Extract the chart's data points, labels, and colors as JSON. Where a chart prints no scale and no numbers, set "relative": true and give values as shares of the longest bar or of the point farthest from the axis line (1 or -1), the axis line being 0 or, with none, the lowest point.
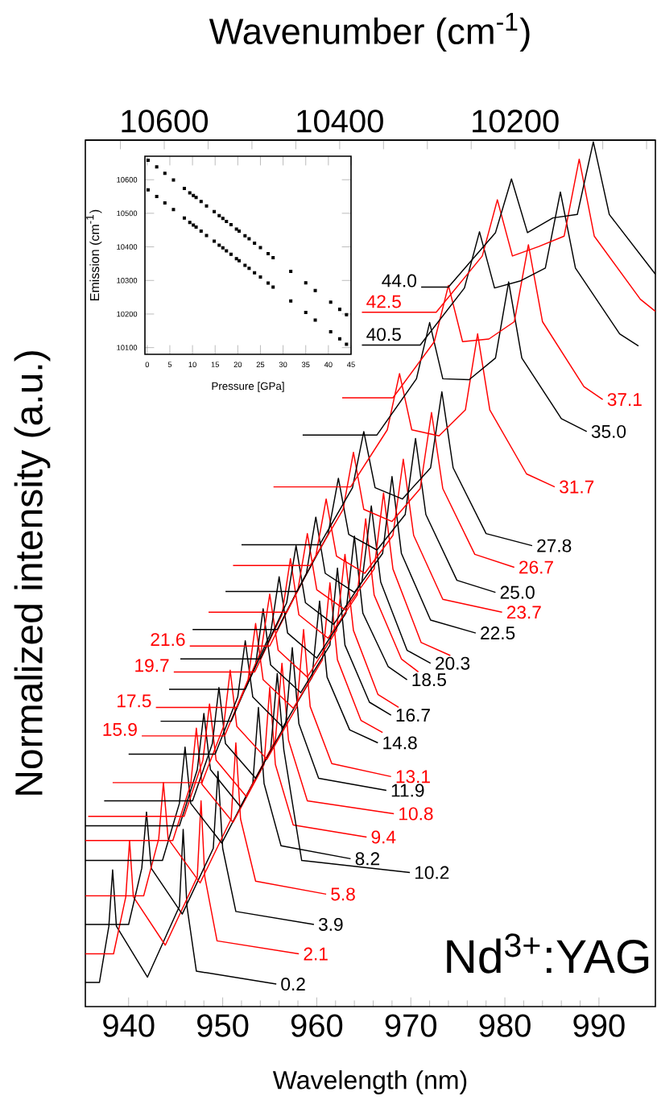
{
  "chart_data": [
    {
      "type": "line",
      "xlabel": "Wavelength (nm)",
      "ylabel": "Normalized intensity (a.u.)",
      "x2label": "Wavenumber (cm$^{-1}$)",
      "relative": true,
      "xlim": [
        935.4,
        996
      ],
      "xticks": [
        940,
        950,
        960,
        970,
        980,
        990
      ],
      "x2lim": [
        10690,
        10040
      ],
      "x2ticks": [
        {
          "value": 10650,
          "label": null
        },
        10600,
        {
          "value": 10550,
          "label": null
        },
        {
          "value": 10500,
          "label": null
        },
        {
          "value": 10450,
          "label": null
        },
        10400,
        {
          "value": 10350,
          "label": null
        },
        {
          "value": 10300,
          "label": null
        },
        {
          "value": 10250,
          "label": null
        },
        10200,
        {
          "value": 10150,
          "label": null
        },
        {
          "value": 10100,
          "label": null
        },
        {
          "value": 10050,
          "label": null
        }
      ],
      "annotations": [
        "Nd$^{3+}$:YAG"
      ],
      "series": [
        {
          "name": "0.2",
          "color": "#000000",
          "x": [
            935.4,
            936.9,
            937.9,
            938.3,
            938.7,
            942.0,
            945.4,
            945.8,
            946.2,
            947.2,
            955.7
          ],
          "values": [
            0.028,
            0.028,
            0.093,
            0.158,
            0.093,
            0.034,
            0.116,
            0.205,
            0.116,
            0.041,
            0.026
          ]
        },
        {
          "name": "2.1",
          "color": "#ff0000",
          "x": [
            935.4,
            938.4,
            939.7,
            940.1,
            940.5,
            943.9,
            947.3,
            947.7,
            948.1,
            949.4,
            958.1
          ],
          "values": [
            0.061,
            0.061,
            0.127,
            0.192,
            0.127,
            0.071,
            0.15,
            0.238,
            0.15,
            0.076,
            0.061
          ]
        },
        {
          "name": "3.9",
          "color": "#000000",
          "x": [
            935.4,
            940.0,
            941.4,
            941.9,
            942.4,
            945.7,
            949.0,
            949.5,
            950.0,
            951.4,
            959.7
          ],
          "values": [
            0.095,
            0.095,
            0.16,
            0.225,
            0.16,
            0.107,
            0.183,
            0.272,
            0.183,
            0.11,
            0.095
          ]
        },
        {
          "name": "5.8",
          "color": "#ff0000",
          "x": [
            935.4,
            941.6,
            943.2,
            943.7,
            944.2,
            947.6,
            950.9,
            951.4,
            951.9,
            953.5,
            961.0
          ],
          "values": [
            0.128,
            0.128,
            0.194,
            0.259,
            0.194,
            0.143,
            0.217,
            0.305,
            0.217,
            0.145,
            0.13
          ]
        },
        {
          "name": "8.2",
          "color": "#000000",
          "x": [
            935.4,
            943.6,
            945.4,
            946.0,
            946.6,
            949.9,
            953.2,
            953.8,
            954.4,
            956.2,
            963.6
          ],
          "values": [
            0.169,
            0.169,
            0.235,
            0.3,
            0.235,
            0.189,
            0.258,
            0.346,
            0.258,
            0.186,
            0.171
          ]
        },
        {
          "name": "9.4",
          "color": "#ff0000",
          "x": [
            935.4,
            944.7,
            946.6,
            947.2,
            947.8,
            951.1,
            954.4,
            955.0,
            955.6,
            957.5,
            965.3
          ],
          "values": [
            0.192,
            0.192,
            0.257,
            0.322,
            0.257,
            0.213,
            0.28,
            0.369,
            0.28,
            0.21,
            0.196
          ]
        },
        {
          "name": "10.2",
          "color": "#000000",
          "x": [
            935.4,
            945.4,
            947.3,
            948.0,
            948.7,
            951.9,
            955.1,
            955.8,
            956.5,
            958.4,
            969.9
          ],
          "values": [
            0.209,
            0.209,
            0.274,
            0.339,
            0.274,
            0.231,
            0.297,
            0.385,
            0.297,
            0.169,
            0.155
          ]
        },
        {
          "name": "10.8",
          "color": "#ff0000",
          "x": [
            935.7,
            945.9,
            947.9,
            948.6,
            949.3,
            952.5,
            955.6,
            956.3,
            957.0,
            959.0,
            968.2
          ],
          "values": [
            0.22,
            0.22,
            0.285,
            0.35,
            0.285,
            0.243,
            0.308,
            0.397,
            0.308,
            0.238,
            0.223
          ]
        },
        {
          "name": "11.9",
          "color": "#000000",
          "x": [
            937.4,
            946.8,
            948.9,
            949.6,
            950.3,
            953.5,
            956.7,
            957.4,
            958.1,
            960.2,
            967.4
          ],
          "values": [
            0.238,
            0.238,
            0.304,
            0.369,
            0.304,
            0.264,
            0.327,
            0.415,
            0.327,
            0.264,
            0.25
          ]
        },
        {
          "name": "13.1",
          "color": "#ff0000",
          "x": [
            938.3,
            947.8,
            950.1,
            950.8,
            951.5,
            954.7,
            957.9,
            958.6,
            959.3,
            961.6,
            967.9
          ],
          "values": [
            0.259,
            0.259,
            0.324,
            0.389,
            0.324,
            0.286,
            0.347,
            0.436,
            0.347,
            0.281,
            0.266
          ]
        },
        {
          "name": "14.8",
          "color": "#000000",
          "x": [
            940.0,
            949.2,
            951.6,
            952.4,
            953.2,
            956.4,
            959.5,
            960.3,
            961.1,
            963.5,
            966.5
          ],
          "values": [
            0.292,
            0.292,
            0.358,
            0.423,
            0.358,
            0.323,
            0.381,
            0.469,
            0.381,
            0.32,
            0.305
          ]
        },
        {
          "name": "15.9",
          "color": "#ff0000",
          "x": [
            941.4,
            950.2,
            952.7,
            953.5,
            954.3,
            957.5,
            960.6,
            961.4,
            962.2,
            964.7,
            967.0
          ],
          "values": [
            0.313,
            0.313,
            0.378,
            0.443,
            0.378,
            0.345,
            0.401,
            0.49,
            0.401,
            0.331,
            0.317
          ]
        },
        {
          "name": "16.7",
          "color": "#000000",
          "x": [
            943.4,
            950.9,
            953.5,
            954.3,
            955.1,
            958.3,
            961.4,
            962.2,
            963.0,
            965.6,
            967.9
          ],
          "values": [
            0.33,
            0.33,
            0.395,
            0.46,
            0.395,
            0.363,
            0.418,
            0.507,
            0.418,
            0.352,
            0.337
          ]
        },
        {
          "name": "17.5",
          "color": "#ff0000",
          "x": [
            942.9,
            951.5,
            954.1,
            955.0,
            955.9,
            959.0,
            962.1,
            963.0,
            963.9,
            966.5,
            968.7
          ],
          "values": [
            0.346,
            0.346,
            0.412,
            0.477,
            0.412,
            0.381,
            0.435,
            0.523,
            0.435,
            0.361,
            0.346
          ]
        },
        {
          "name": "18.5",
          "color": "#000000",
          "x": [
            944.3,
            952.4,
            955.1,
            956.0,
            956.9,
            960.0,
            963.1,
            964.0,
            964.9,
            967.6,
            969.6
          ],
          "values": [
            0.367,
            0.367,
            0.432,
            0.497,
            0.432,
            0.403,
            0.455,
            0.544,
            0.455,
            0.393,
            0.378
          ]
        },
        {
          "name": "19.7",
          "color": "#ff0000",
          "x": [
            944.8,
            953.4,
            956.3,
            957.2,
            958.1,
            961.2,
            964.3,
            965.2,
            966.1,
            969.0,
            970.8
          ],
          "values": [
            0.387,
            0.387,
            0.453,
            0.518,
            0.453,
            0.426,
            0.476,
            0.564,
            0.476,
            0.402,
            0.387
          ]
        },
        {
          "name": "20.3",
          "color": "#000000",
          "x": [
            945.5,
            954.0,
            956.8,
            957.8,
            958.8,
            961.8,
            964.8,
            965.8,
            966.8,
            969.6,
            972.1
          ],
          "values": [
            0.402,
            0.402,
            0.467,
            0.533,
            0.467,
            0.442,
            0.491,
            0.579,
            0.491,
            0.412,
            0.397
          ]
        },
        {
          "name": "21.6",
          "color": "#ff0000",
          "x": [
            946.5,
            955.0,
            958.0,
            959.0,
            960.0,
            963.0,
            966.1,
            967.1,
            968.1,
            971.1,
            974.2
          ],
          "values": [
            0.417,
            0.417,
            0.482,
            0.547,
            0.482,
            0.459,
            0.506,
            0.594,
            0.506,
            0.421,
            0.406
          ]
        },
        {
          "name": "22.5",
          "color": "#000000",
          "x": [
            946.8,
            955.8,
            958.9,
            959.9,
            960.9,
            964.0,
            967.0,
            968.0,
            969.0,
            972.1,
            976.9
          ],
          "values": [
            0.436,
            0.436,
            0.501,
            0.566,
            0.501,
            0.479,
            0.524,
            0.613,
            0.524,
            0.447,
            0.432
          ]
        },
        {
          "name": "23.7",
          "color": "#ff0000",
          "x": [
            948.5,
            956.8,
            959.9,
            961.0,
            962.1,
            965.1,
            968.1,
            969.2,
            970.3,
            973.4,
            979.7
          ],
          "values": [
            0.456,
            0.456,
            0.521,
            0.587,
            0.521,
            0.501,
            0.545,
            0.633,
            0.545,
            0.471,
            0.456
          ]
        },
        {
          "name": "25.0",
          "color": "#000000",
          "x": [
            950.3,
            957.9,
            961.2,
            962.3,
            963.4,
            966.4,
            969.4,
            970.5,
            971.6,
            974.9,
            979.0
          ],
          "values": [
            0.48,
            0.48,
            0.546,
            0.611,
            0.546,
            0.528,
            0.569,
            0.657,
            0.569,
            0.493,
            0.479
          ]
        },
        {
          "name": "26.7",
          "color": "#ff0000",
          "x": [
            951.1,
            959.3,
            962.8,
            963.9,
            965.0,
            968.0,
            971.0,
            972.2,
            973.4,
            976.8,
            981.0
          ],
          "values": [
            0.51,
            0.51,
            0.575,
            0.641,
            0.575,
            0.561,
            0.599,
            0.687,
            0.599,
            0.523,
            0.508
          ]
        },
        {
          "name": "27.8",
          "color": "#000000",
          "x": [
            952.0,
            960.3,
            963.8,
            965.0,
            966.2,
            969.1,
            972.1,
            973.3,
            974.5,
            978.0,
            982.9
          ],
          "values": [
            0.534,
            0.534,
            0.6,
            0.665,
            0.6,
            0.587,
            0.623,
            0.711,
            0.623,
            0.547,
            0.533
          ]
        },
        {
          "name": "31.7",
          "color": "#ff0000",
          "x": [
            955.4,
            963.6,
            967.5,
            968.8,
            970.1,
            973.0,
            975.8,
            977.1,
            978.4,
            982.3,
            985.3
          ],
          "values": [
            0.601,
            0.601,
            0.667,
            0.732,
            0.667,
            0.66,
            0.69,
            0.778,
            0.69,
            0.616,
            0.601
          ]
        },
        {
          "name": "35.0",
          "color": "#000000",
          "x": [
            958.5,
            966.4,
            970.6,
            972.0,
            973.4,
            976.2,
            979.0,
            980.4,
            981.8,
            986.0,
            988.7
          ],
          "values": [
            0.661,
            0.661,
            0.726,
            0.791,
            0.726,
            0.725,
            0.75,
            0.838,
            0.75,
            0.68,
            0.665
          ]
        },
        {
          "name": "37.1",
          "color": "#ff0000",
          "x": [
            962.7,
            968.1,
            972.5,
            974.0,
            975.5,
            978.3,
            981.0,
            982.5,
            984.0,
            988.4,
            990.4
          ],
          "values": [
            0.704,
            0.704,
            0.769,
            0.834,
            0.769,
            0.772,
            0.792,
            0.881,
            0.792,
            0.717,
            0.702
          ]
        },
        {
          "name": "40.5",
          "color": "#000000",
          "x": [
            964.8,
            971.0,
            975.7,
            977.3,
            978.9,
            981.6,
            984.3,
            985.9,
            987.5,
            992.2,
            994.2
          ],
          "values": [
            0.765,
            0.765,
            0.831,
            0.896,
            0.831,
            0.839,
            0.854,
            0.942,
            0.854,
            0.778,
            0.764
          ]
        },
        {
          "name": "42.5",
          "color": "#ff0000",
          "x": [
            964.8,
            972.7,
            977.6,
            979.2,
            980.8,
            983.6,
            986.3,
            987.9,
            989.5,
            994.4,
            996.0
          ],
          "values": [
            0.803,
            0.803,
            0.868,
            0.933,
            0.868,
            0.879,
            0.891,
            0.98,
            0.891,
            0.818,
            0.804
          ]
        },
        {
          "name": "44.0",
          "color": "#000000",
          "x": [
            971.1,
            974.0,
            979.0,
            980.7,
            982.4,
            985.1,
            987.7,
            989.4,
            991.1,
            996.0
          ],
          "values": [
            0.832,
            0.832,
            0.895,
            0.957,
            0.895,
            0.912,
            0.916,
            1.0,
            0.916,
            0.847
          ]
        }
      ]
    },
    {
      "type": "scatter",
      "xlabel": "Pressure [GPa]",
      "ylabel": "Emission (cm$^{-1}$)",
      "xlim": [
        -0.5,
        45
      ],
      "ylim": [
        10080,
        10670
      ],
      "xticks": [
        0,
        5,
        10,
        15,
        20,
        25,
        30,
        35,
        40,
        45
      ],
      "yticks": [
        10100,
        10200,
        10300,
        10400,
        10500,
        10600
      ],
      "marker": "square",
      "x": [
        0.2,
        2.1,
        3.9,
        5.8,
        8.2,
        9.4,
        10.2,
        10.8,
        11.9,
        13.1,
        14.8,
        15.9,
        16.7,
        17.5,
        18.5,
        19.7,
        20.3,
        21.6,
        22.5,
        23.7,
        25.0,
        26.7,
        27.8,
        31.7,
        35.0,
        37.1,
        40.5,
        42.5,
        44.0
      ],
      "series": [
        {
          "color": "#000000",
          "values": [
            10658,
            10638,
            10619,
            10599,
            10574,
            10561,
            10553,
            10547,
            10535,
            10522,
            10505,
            10493,
            10485,
            10476,
            10466,
            10453,
            10447,
            10433,
            10424,
            10411,
            10398,
            10380,
            10368,
            10327,
            10293,
            10270,
            10235,
            10214,
            10198
          ]
        },
        {
          "color": "#000000",
          "values": [
            10570,
            10550,
            10531,
            10511,
            10486,
            10473,
            10465,
            10459,
            10447,
            10434,
            10417,
            10405,
            10397,
            10388,
            10378,
            10365,
            10359,
            10345,
            10336,
            10323,
            10310,
            10292,
            10280,
            10239,
            10205,
            10182,
            10147,
            10126,
            10110
          ]
        }
      ]
    }
  ]
}
